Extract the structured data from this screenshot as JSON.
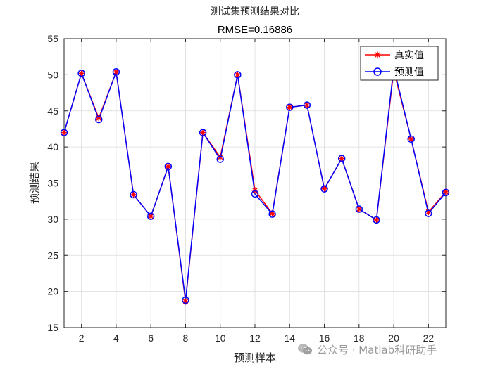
{
  "chart_data": {
    "type": "line",
    "title": "测试集预测结果对比",
    "subtitle": "RMSE=0.16886",
    "xlabel": "预测样本",
    "ylabel": "预测结果",
    "xlim": [
      1,
      23
    ],
    "ylim": [
      15,
      55
    ],
    "x_ticks": [
      2,
      4,
      6,
      8,
      10,
      12,
      14,
      16,
      18,
      20,
      22
    ],
    "y_ticks": [
      15,
      20,
      25,
      30,
      35,
      40,
      45,
      50,
      55
    ],
    "grid": true,
    "legend_position": "top-right",
    "x": [
      1,
      2,
      3,
      4,
      5,
      6,
      7,
      8,
      9,
      10,
      11,
      12,
      13,
      14,
      15,
      16,
      17,
      18,
      19,
      20,
      21,
      22,
      23
    ],
    "series": [
      {
        "name": "真实值",
        "color": "#ff0000",
        "marker": "asterisk",
        "values": [
          42.0,
          50.2,
          44.0,
          50.4,
          33.4,
          30.4,
          37.3,
          18.6,
          42.0,
          38.6,
          50.0,
          34.0,
          30.8,
          45.5,
          45.8,
          34.2,
          38.4,
          31.4,
          29.9,
          50.6,
          41.1,
          31.0,
          33.8
        ]
      },
      {
        "name": "预测值",
        "color": "#0000ff",
        "marker": "circle",
        "values": [
          42.0,
          50.2,
          43.8,
          50.4,
          33.4,
          30.4,
          37.3,
          18.8,
          42.0,
          38.3,
          50.0,
          33.5,
          30.7,
          45.5,
          45.8,
          34.2,
          38.4,
          31.4,
          29.9,
          51.0,
          41.1,
          30.8,
          33.7
        ]
      }
    ]
  },
  "watermark": {
    "text": "公众号 · Matlab科研助手",
    "icon": "wechat-icon"
  }
}
